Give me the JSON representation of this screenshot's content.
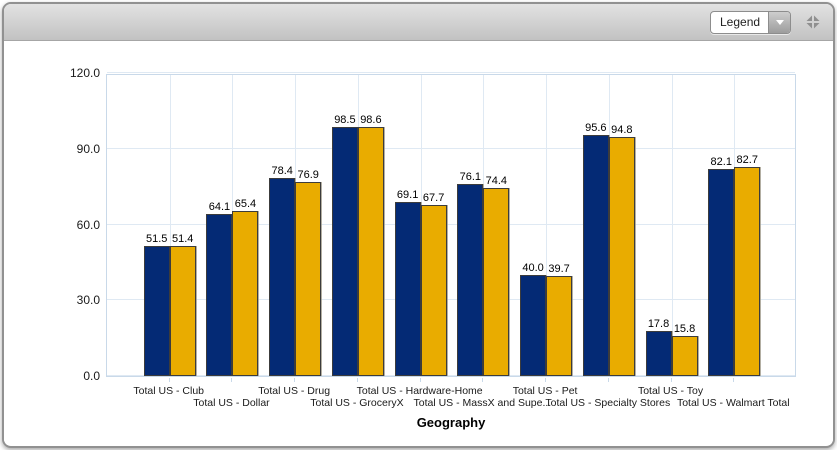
{
  "toolbar": {
    "legend_dropdown_value": "Legend",
    "collapse_icon": "collapse-arrows-icon",
    "dropdown_arrow_icon": "chevron-down-icon"
  },
  "chart_data": {
    "type": "bar",
    "title": "",
    "xlabel": "Geography",
    "ylabel": "",
    "ylim": [
      0,
      120
    ],
    "yticks": [
      "0.0",
      "30.0",
      "60.0",
      "90.0",
      "120.0"
    ],
    "grid": true,
    "value_labels_shown": true,
    "categories": [
      "Total US - Club",
      "Total US - Dollar",
      "Total US - Drug",
      "Total US - GroceryX",
      "Total US - Hardware-Home",
      "Total US - MassX and Supe...",
      "Total US - Pet",
      "Total US - Specialty Stores",
      "Total US - Toy",
      "Total US - Walmart Total"
    ],
    "series": [
      {
        "color": "#042a75",
        "values": [
          51.5,
          64.1,
          78.4,
          98.5,
          69.1,
          76.1,
          40.0,
          95.6,
          17.8,
          82.1
        ]
      },
      {
        "color": "#e9ac00",
        "values": [
          51.4,
          65.4,
          76.9,
          98.6,
          67.7,
          74.4,
          39.7,
          94.8,
          15.8,
          82.7
        ]
      }
    ]
  }
}
